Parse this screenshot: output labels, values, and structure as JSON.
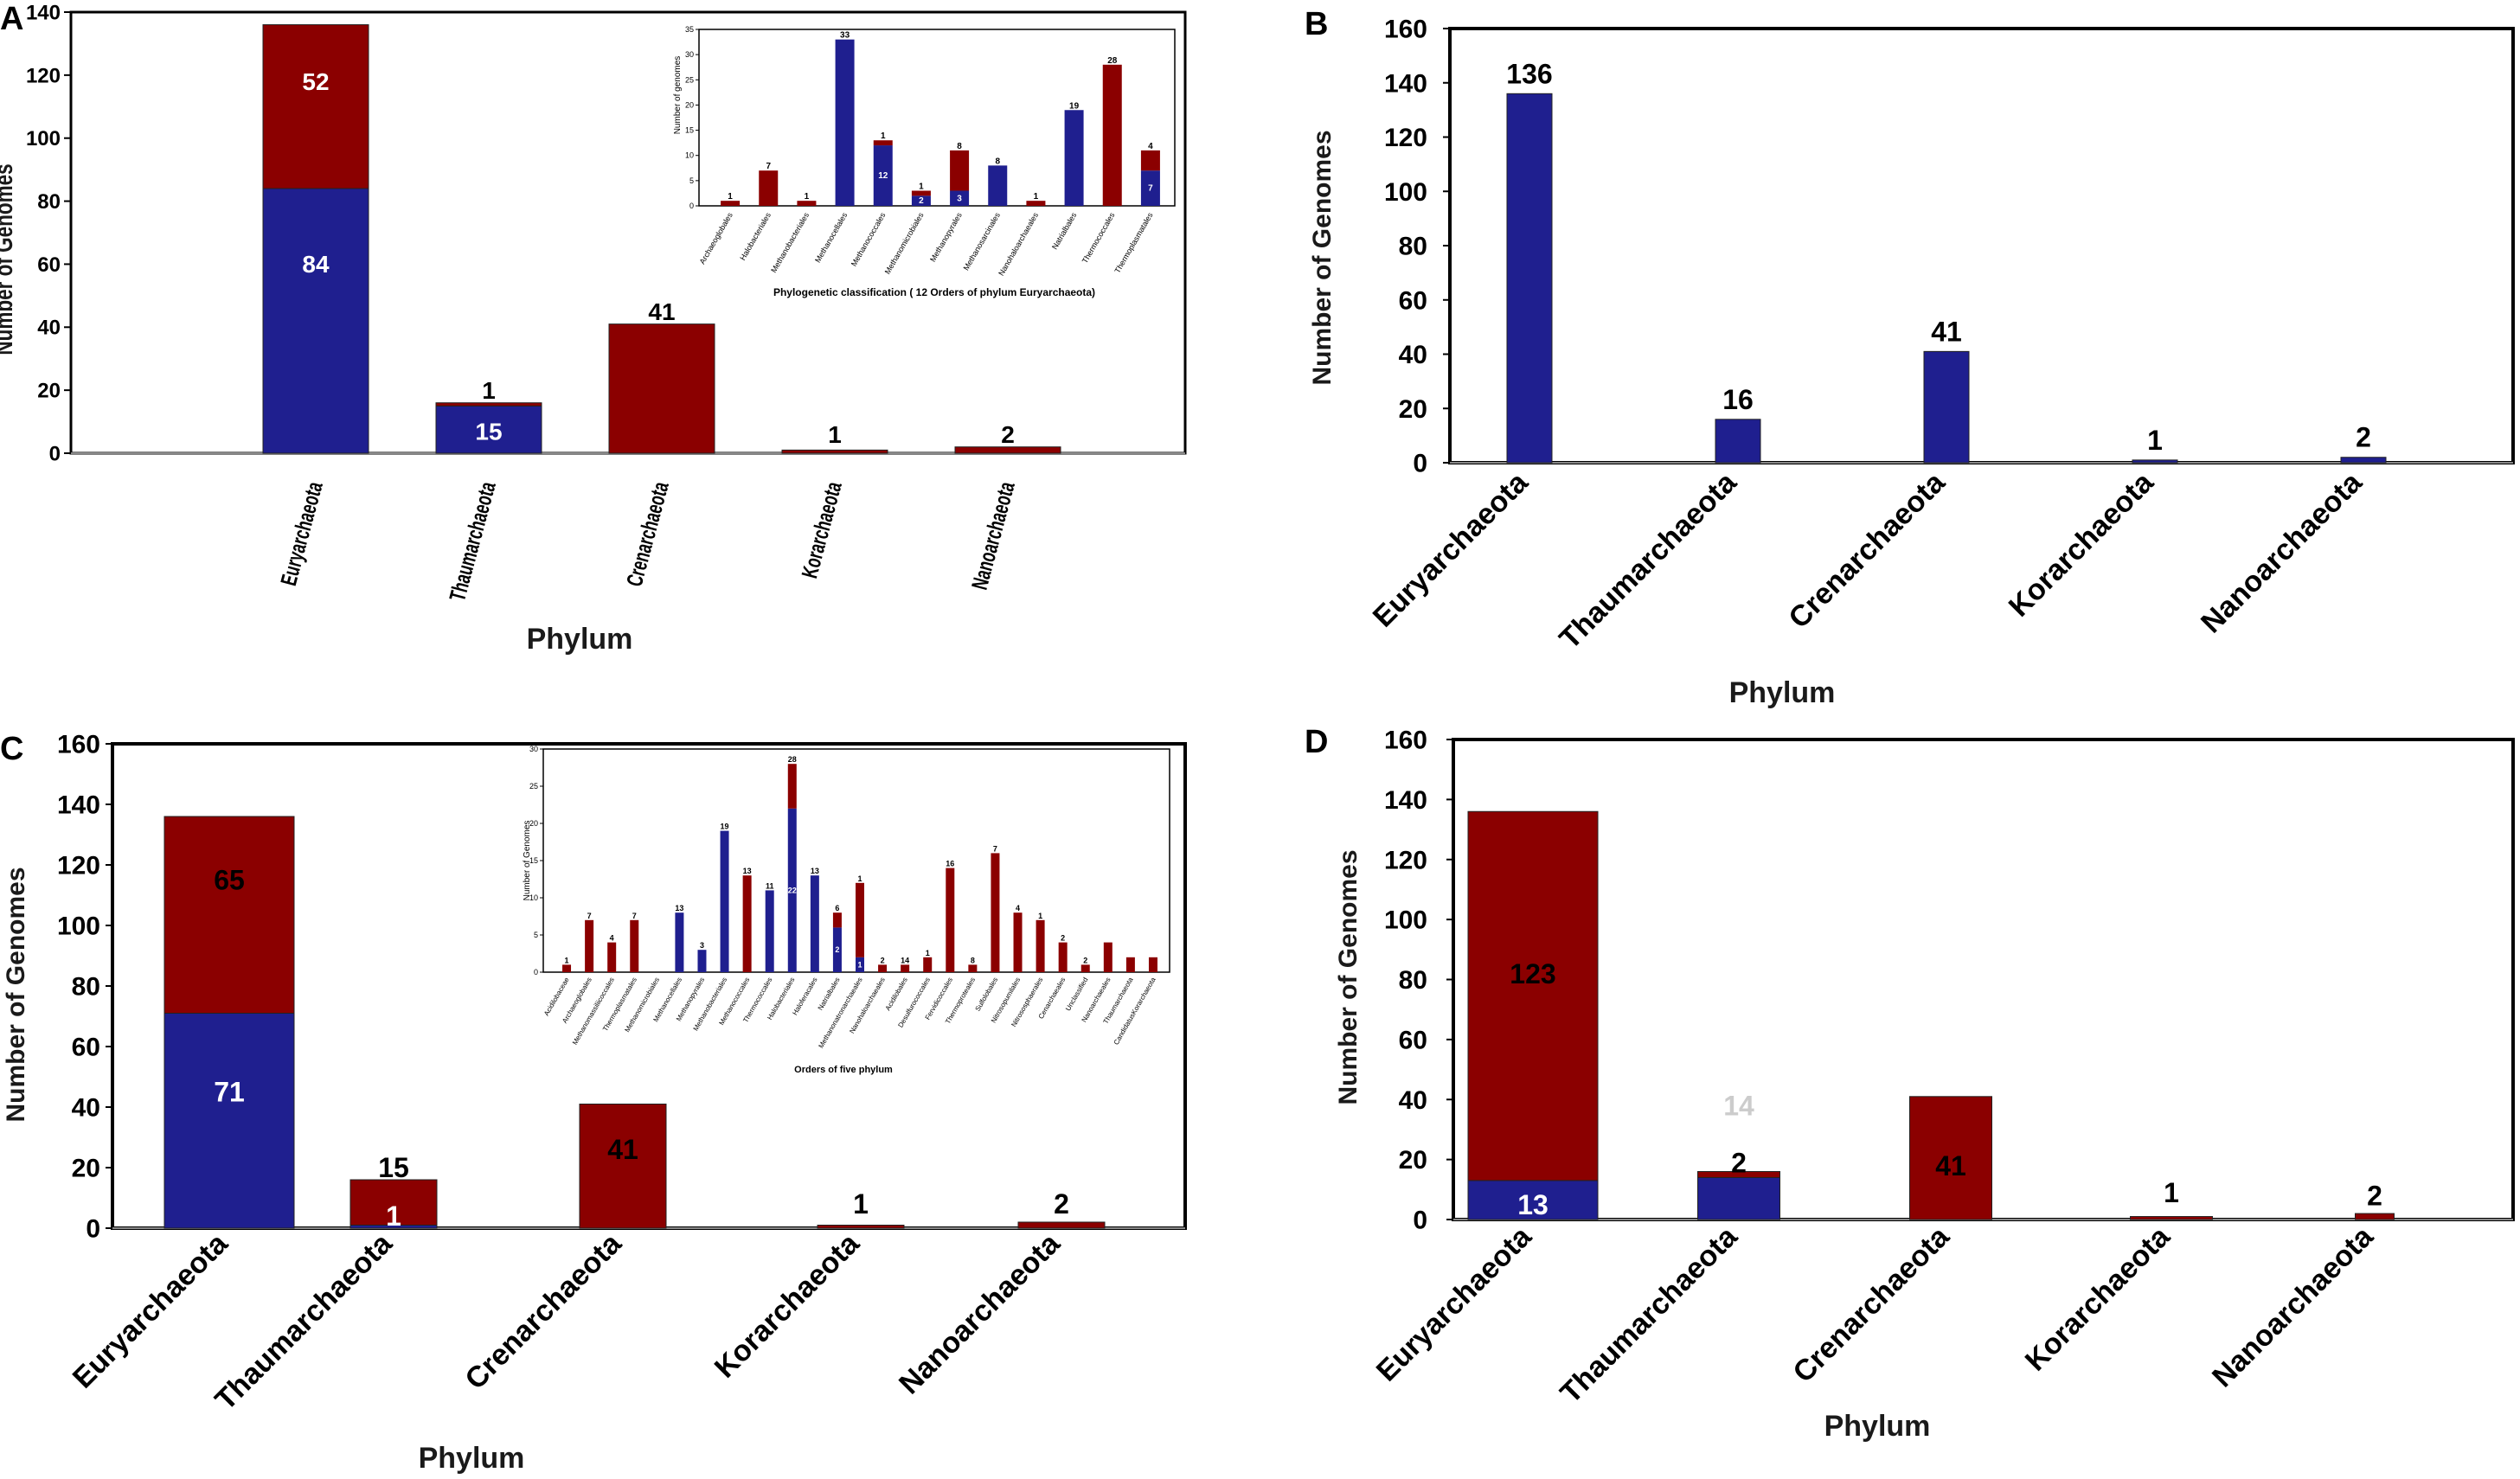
{
  "colors": {
    "blue": "#1f1f8f",
    "red": "#8b0000",
    "frame": "#000000"
  },
  "chart_data": [
    {
      "panel": "A",
      "type": "bar",
      "stacked": true,
      "xlabel": "Phylum",
      "ylabel": "Number of Genomes",
      "ylim": [
        0,
        140
      ],
      "yticks": [
        0,
        20,
        40,
        60,
        80,
        100,
        120,
        140
      ],
      "categories": [
        "Euryarchaeota",
        "Thaumarchaeota",
        "Crenarchaeota",
        "Korarchaeota",
        "Nanoarchaeota"
      ],
      "series": [
        {
          "name": "blue",
          "color": "#1f1f8f",
          "values": [
            84,
            15,
            0,
            0,
            0
          ]
        },
        {
          "name": "red",
          "color": "#8b0000",
          "values": [
            52,
            1,
            41,
            1,
            2
          ]
        }
      ],
      "labels": [
        {
          "cat": 0,
          "text": "52",
          "at": 118,
          "color": "#ffffff"
        },
        {
          "cat": 0,
          "text": "84",
          "at": 60,
          "color": "#ffffff"
        },
        {
          "cat": 1,
          "text": "1",
          "at": 20,
          "color": "#000000"
        },
        {
          "cat": 1,
          "text": "15",
          "at": 7,
          "color": "#ffffff"
        },
        {
          "cat": 2,
          "text": "41",
          "at": 45,
          "color": "#000000"
        },
        {
          "cat": 3,
          "text": "1",
          "at": 6,
          "color": "#000000"
        },
        {
          "cat": 4,
          "text": "2",
          "at": 6,
          "color": "#000000"
        }
      ],
      "inset": {
        "type": "bar",
        "stacked": true,
        "xlabel": "Phylogenetic classification ( 12 Orders of phylum Euryarchaeota)",
        "ylabel": "Number of genomes",
        "ylim": [
          0,
          35
        ],
        "yticks": [
          0,
          5,
          10,
          15,
          20,
          25,
          30,
          35
        ],
        "categories": [
          "Archaeoglobales",
          "Halobacteriales",
          "Methanobacteriales",
          "Methanocellales",
          "Methanococcales",
          "Methanomicrobiales",
          "Methanopyrales",
          "Methanosarcinales",
          "Nanohaloarchaeales",
          "Natrialbales",
          "Thermococcales",
          "Thermoplasmatales"
        ],
        "series": [
          {
            "name": "blue",
            "color": "#1f1f8f",
            "values": [
              0,
              0,
              0,
              33,
              12,
              2,
              3,
              8,
              0,
              19,
              0,
              7
            ]
          },
          {
            "name": "red",
            "color": "#8b0000",
            "values": [
              1,
              7,
              1,
              0,
              1,
              1,
              8,
              0,
              1,
              0,
              28,
              4
            ]
          }
        ],
        "labels": [
          "1",
          "7",
          "1",
          "33",
          "1",
          "12",
          "1",
          "2",
          "8",
          "3",
          "8",
          "1",
          "19",
          "28",
          "4",
          "7"
        ]
      }
    },
    {
      "panel": "B",
      "type": "bar",
      "xlabel": "Phylum",
      "ylabel": "Number of Genomes",
      "ylim": [
        0,
        160
      ],
      "yticks": [
        0,
        20,
        40,
        60,
        80,
        100,
        120,
        140,
        160
      ],
      "categories": [
        "Euryarchaeota",
        "Thaumarchaeota",
        "Crenarchaeota",
        "Korarchaeota",
        "Nanoarchaeota"
      ],
      "series": [
        {
          "name": "total",
          "color": "#1f1f8f",
          "values": [
            136,
            16,
            41,
            1,
            2
          ]
        }
      ],
      "labels": [
        "136",
        "16",
        "41",
        "1",
        "2"
      ]
    },
    {
      "panel": "C",
      "type": "bar",
      "stacked": true,
      "xlabel": "Phylum",
      "ylabel": "Number of Genomes",
      "ylim": [
        0,
        160
      ],
      "yticks": [
        0,
        20,
        40,
        60,
        80,
        100,
        120,
        140,
        160
      ],
      "categories": [
        "Euryarchaeota",
        "Thaumarchaeota",
        "Crenarchaeota",
        "Korarchaeota",
        "Nanoarchaeota"
      ],
      "series": [
        {
          "name": "blue",
          "color": "#1f1f8f",
          "values": [
            71,
            1,
            0,
            0,
            0
          ]
        },
        {
          "name": "red",
          "color": "#8b0000",
          "values": [
            65,
            15,
            41,
            1,
            2
          ]
        }
      ],
      "labels": [
        {
          "cat": 0,
          "text": "65",
          "at": 115,
          "color": "#000000"
        },
        {
          "cat": 0,
          "text": "71",
          "at": 45,
          "color": "#ffffff"
        },
        {
          "cat": 1,
          "text": "15",
          "at": 20,
          "color": "#000000"
        },
        {
          "cat": 1,
          "text": "1",
          "at": 4,
          "color": "#ffffff"
        },
        {
          "cat": 2,
          "text": "41",
          "at": 26,
          "color": "#000000"
        },
        {
          "cat": 3,
          "text": "1",
          "at": 8,
          "color": "#000000"
        },
        {
          "cat": 4,
          "text": "2",
          "at": 8,
          "color": "#000000"
        }
      ],
      "inset": {
        "type": "bar",
        "stacked": true,
        "xlabel": "Orders of five phylum",
        "ylabel": "Number of Genomes",
        "ylim": [
          0,
          30
        ],
        "yticks": [
          0,
          5,
          10,
          15,
          20,
          25,
          30
        ],
        "categories": [
          "Acidilobaceae",
          "Archaeoglobales",
          "Methanomassiliicoccales",
          "Thermoplasmatales",
          "Methanomicrobiales",
          "Methanocellales",
          "Methanopyrales",
          "Methanobacteriales",
          "Methanococcales",
          "Thermococcales",
          "Halobacteriales",
          "Haloferacales",
          "Natrialbales",
          "Methanonatronarchaeales",
          "Nanohaloarchaeales",
          "Acidilobales",
          "Desulfurococcales",
          "Fervidicoccales",
          "Thermoproteales",
          "Sulfolobales",
          "Nitrosopumilales",
          "Nitrososphaerales",
          "Cenarchaeales",
          "Unclassified",
          "Nanoarchaeales",
          "Thaumarchaeota",
          "CandidatusKorarchaeota"
        ],
        "series": [
          {
            "name": "blue",
            "color": "#1f1f8f",
            "values": [
              0,
              0,
              0,
              0,
              0,
              8,
              3,
              19,
              0,
              11,
              22,
              13,
              6,
              2,
              0,
              0,
              0,
              0,
              0,
              0,
              0,
              0,
              0,
              0,
              0,
              0,
              0
            ]
          },
          {
            "name": "red",
            "color": "#8b0000",
            "values": [
              1,
              7,
              4,
              7,
              0,
              0,
              0,
              0,
              13,
              0,
              6,
              0,
              2,
              10,
              1,
              1,
              2,
              14,
              1,
              16,
              8,
              7,
              4,
              1,
              4,
              2,
              2
            ]
          }
        ],
        "labels": [
          "1",
          "7",
          "4",
          "7",
          "13",
          "3",
          "19",
          "13",
          "11",
          "28",
          "22",
          "13",
          "6",
          "2",
          "1",
          "1",
          "2",
          "14",
          "1",
          "16",
          "8",
          "7",
          "4",
          "1",
          "2",
          "2"
        ]
      }
    },
    {
      "panel": "D",
      "type": "bar",
      "stacked": true,
      "xlabel": "Phylum",
      "ylabel": "Number of Genomes",
      "ylim": [
        0,
        160
      ],
      "yticks": [
        0,
        20,
        40,
        60,
        80,
        100,
        120,
        140,
        160
      ],
      "categories": [
        "Euryarchaeota",
        "Thaumarchaeota",
        "Crenarchaeota",
        "Korarchaeota",
        "Nanoarchaeota"
      ],
      "series": [
        {
          "name": "blue",
          "color": "#1f1f8f",
          "values": [
            13,
            14,
            0,
            0,
            0
          ]
        },
        {
          "name": "red",
          "color": "#8b0000",
          "values": [
            123,
            2,
            41,
            1,
            2
          ]
        }
      ],
      "labels": [
        {
          "cat": 0,
          "text": "123",
          "at": 82,
          "color": "#000000"
        },
        {
          "cat": 0,
          "text": "13",
          "at": 5,
          "color": "#ffffff"
        },
        {
          "cat": 1,
          "text": "14",
          "at": 38,
          "color": "#cccccc"
        },
        {
          "cat": 1,
          "text": "2",
          "at": 19,
          "color": "#000000"
        },
        {
          "cat": 2,
          "text": "41",
          "at": 18,
          "color": "#000000"
        },
        {
          "cat": 3,
          "text": "1",
          "at": 9,
          "color": "#000000"
        },
        {
          "cat": 4,
          "text": "2",
          "at": 8,
          "color": "#000000"
        }
      ]
    }
  ]
}
